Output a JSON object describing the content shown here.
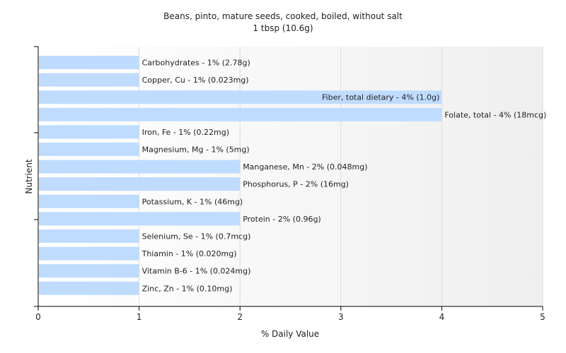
{
  "chart_data": {
    "type": "bar",
    "orientation": "horizontal",
    "title": "Beans, pinto, mature seeds, cooked, boiled, without salt",
    "subtitle": "1 tbsp (10.6g)",
    "xlabel": "% Daily Value",
    "ylabel": "Nutrient",
    "xlim": [
      0,
      5
    ],
    "xticks": [
      "0",
      "1",
      "2",
      "3",
      "4",
      "5"
    ],
    "grid": true,
    "bar_color": "#bfdcff",
    "categories": [
      "Carbohydrates",
      "Copper, Cu",
      "Fiber, total dietary",
      "Folate, total",
      "Iron, Fe",
      "Magnesium, Mg",
      "Manganese, Mn",
      "Phosphorus, P",
      "Potassium, K",
      "Protein",
      "Selenium, Se",
      "Thiamin",
      "Vitamin B-6",
      "Zinc, Zn"
    ],
    "values": [
      1,
      1,
      4,
      4,
      1,
      1,
      2,
      2,
      1,
      2,
      1,
      1,
      1,
      1
    ],
    "labels": [
      "Carbohydrates - 1% (2.78g)",
      "Copper, Cu - 1% (0.023mg)",
      "Fiber, total dietary - 4% (1.0g)",
      "Folate, total - 4% (18mcg)",
      "Iron, Fe - 1% (0.22mg)",
      "Magnesium, Mg - 1% (5mg)",
      "Manganese, Mn - 2% (0.048mg)",
      "Phosphorus, P - 2% (16mg)",
      "Potassium, K - 1% (46mg)",
      "Protein - 2% (0.96g)",
      "Selenium, Se - 1% (0.7mcg)",
      "Thiamin - 1% (0.020mg)",
      "Vitamin B-6 - 1% (0.024mg)",
      "Zinc, Zn - 1% (0.10mg)"
    ]
  }
}
